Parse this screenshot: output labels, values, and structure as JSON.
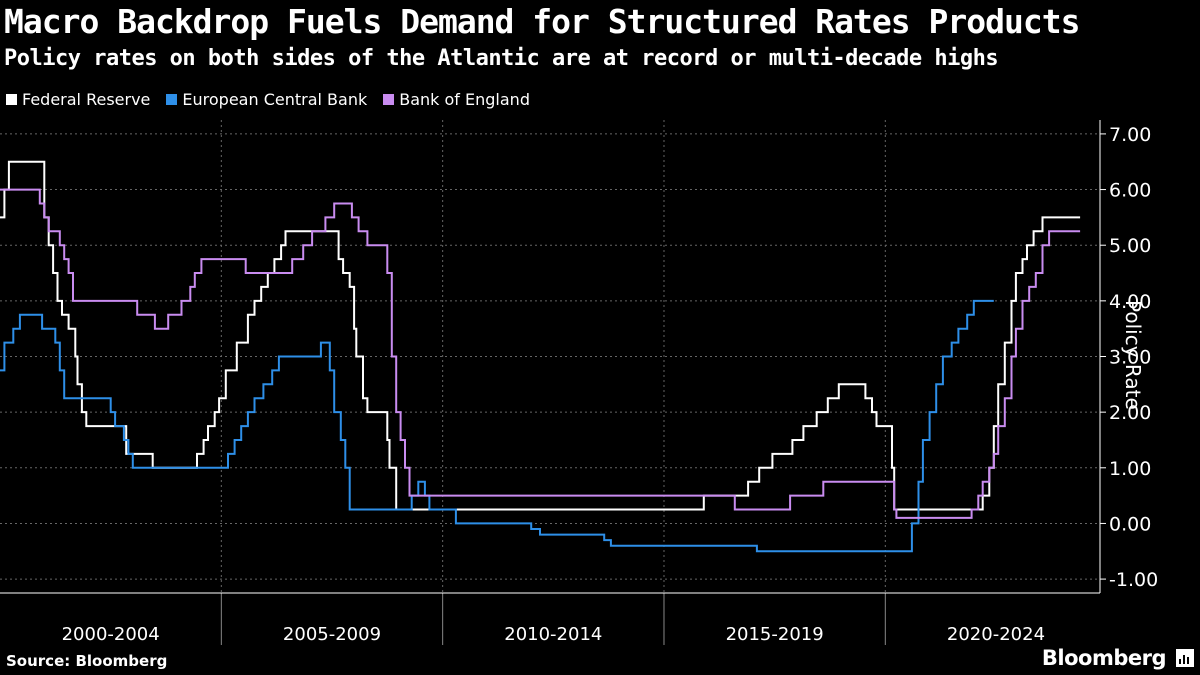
{
  "title": "Macro Backdrop Fuels Demand for Structured Rates Products",
  "subtitle": "Policy rates on both sides of the Atlantic are at record or multi-decade highs",
  "source": "Source: Bloomberg",
  "brand": "Bloomberg",
  "chart_data": {
    "type": "line",
    "ylabel": "Policy Rate",
    "ylim": [
      -1.25,
      7.25
    ],
    "yticks": [
      7,
      6,
      5,
      4,
      3,
      2,
      1,
      0,
      -1
    ],
    "ytick_labels": [
      "7.00",
      "6.00",
      "5.00",
      "4.00",
      "3.00",
      "2.00",
      "1.00",
      "0.00",
      "-1.00"
    ],
    "x_range": [
      2000.0,
      2024.7
    ],
    "x_groups": [
      {
        "label": "2000-2004",
        "start": 2000,
        "end": 2005
      },
      {
        "label": "2005-2009",
        "start": 2005,
        "end": 2010
      },
      {
        "label": "2010-2014",
        "start": 2010,
        "end": 2015
      },
      {
        "label": "2015-2019",
        "start": 2015,
        "end": 2020
      },
      {
        "label": "2020-2024",
        "start": 2020,
        "end": 2025
      }
    ],
    "grid": true,
    "legend_position": "top-left",
    "series": [
      {
        "name": "Federal Reserve",
        "color": "#ffffff",
        "points": [
          [
            2000.0,
            5.5
          ],
          [
            2000.1,
            6.0
          ],
          [
            2000.2,
            6.5
          ],
          [
            2000.65,
            6.5
          ],
          [
            2001.0,
            5.5
          ],
          [
            2001.1,
            5.0
          ],
          [
            2001.2,
            4.5
          ],
          [
            2001.3,
            4.0
          ],
          [
            2001.4,
            3.75
          ],
          [
            2001.55,
            3.5
          ],
          [
            2001.7,
            3.0
          ],
          [
            2001.75,
            2.5
          ],
          [
            2001.85,
            2.0
          ],
          [
            2001.95,
            1.75
          ],
          [
            2002.85,
            1.25
          ],
          [
            2003.45,
            1.0
          ],
          [
            2004.45,
            1.25
          ],
          [
            2004.6,
            1.5
          ],
          [
            2004.7,
            1.75
          ],
          [
            2004.85,
            2.0
          ],
          [
            2004.95,
            2.25
          ],
          [
            2005.1,
            2.75
          ],
          [
            2005.35,
            3.25
          ],
          [
            2005.6,
            3.75
          ],
          [
            2005.75,
            4.0
          ],
          [
            2005.9,
            4.25
          ],
          [
            2006.05,
            4.5
          ],
          [
            2006.2,
            4.75
          ],
          [
            2006.35,
            5.0
          ],
          [
            2006.45,
            5.25
          ],
          [
            2007.65,
            4.75
          ],
          [
            2007.75,
            4.5
          ],
          [
            2007.9,
            4.25
          ],
          [
            2008.0,
            3.5
          ],
          [
            2008.05,
            3.0
          ],
          [
            2008.2,
            2.25
          ],
          [
            2008.3,
            2.0
          ],
          [
            2008.75,
            1.5
          ],
          [
            2008.8,
            1.0
          ],
          [
            2008.95,
            0.25
          ],
          [
            2015.9,
            0.5
          ],
          [
            2016.9,
            0.75
          ],
          [
            2017.15,
            1.0
          ],
          [
            2017.45,
            1.25
          ],
          [
            2017.9,
            1.5
          ],
          [
            2018.15,
            1.75
          ],
          [
            2018.45,
            2.0
          ],
          [
            2018.7,
            2.25
          ],
          [
            2018.95,
            2.5
          ],
          [
            2019.55,
            2.25
          ],
          [
            2019.7,
            2.0
          ],
          [
            2019.8,
            1.75
          ],
          [
            2020.15,
            1.0
          ],
          [
            2020.2,
            0.25
          ],
          [
            2022.2,
            0.5
          ],
          [
            2022.35,
            1.0
          ],
          [
            2022.45,
            1.75
          ],
          [
            2022.55,
            2.5
          ],
          [
            2022.7,
            3.25
          ],
          [
            2022.85,
            4.0
          ],
          [
            2022.95,
            4.5
          ],
          [
            2023.1,
            4.75
          ],
          [
            2023.2,
            5.0
          ],
          [
            2023.35,
            5.25
          ],
          [
            2023.55,
            5.5
          ],
          [
            2024.4,
            5.5
          ]
        ]
      },
      {
        "name": "European Central Bank",
        "color": "#2e8fe8",
        "points": [
          [
            2000.0,
            2.75
          ],
          [
            2000.1,
            3.25
          ],
          [
            2000.3,
            3.5
          ],
          [
            2000.45,
            3.75
          ],
          [
            2000.95,
            3.5
          ],
          [
            2001.25,
            3.25
          ],
          [
            2001.35,
            2.75
          ],
          [
            2001.45,
            2.25
          ],
          [
            2002.5,
            2.25
          ],
          [
            2002.5,
            2.0
          ],
          [
            2002.6,
            1.75
          ],
          [
            2002.8,
            1.5
          ],
          [
            2002.9,
            1.25
          ],
          [
            2003.0,
            1.0
          ],
          [
            2005.0,
            1.0
          ],
          [
            2005.15,
            1.25
          ],
          [
            2005.3,
            1.5
          ],
          [
            2005.45,
            1.75
          ],
          [
            2005.6,
            2.0
          ],
          [
            2005.75,
            2.25
          ],
          [
            2005.95,
            2.5
          ],
          [
            2006.15,
            2.75
          ],
          [
            2006.3,
            3.0
          ],
          [
            2007.05,
            3.0
          ],
          [
            2007.25,
            3.25
          ],
          [
            2007.45,
            2.75
          ],
          [
            2007.55,
            2.0
          ],
          [
            2007.7,
            1.5
          ],
          [
            2007.8,
            1.0
          ],
          [
            2007.9,
            0.25
          ],
          [
            2009.2,
            0.25
          ],
          [
            2009.3,
            0.5
          ],
          [
            2009.45,
            0.75
          ],
          [
            2009.6,
            0.5
          ],
          [
            2009.7,
            0.25
          ],
          [
            2010.2,
            0.25
          ],
          [
            2010.3,
            0.0
          ],
          [
            2011.85,
            0.0
          ],
          [
            2012.0,
            -0.1
          ],
          [
            2012.2,
            -0.2
          ],
          [
            2013.5,
            -0.2
          ],
          [
            2013.65,
            -0.3
          ],
          [
            2013.8,
            -0.4
          ],
          [
            2016.9,
            -0.4
          ],
          [
            2017.1,
            -0.5
          ],
          [
            2020.55,
            -0.5
          ],
          [
            2020.6,
            0.0
          ],
          [
            2020.75,
            0.75
          ],
          [
            2020.85,
            1.5
          ],
          [
            2021.0,
            2.0
          ],
          [
            2021.15,
            2.5
          ],
          [
            2021.3,
            3.0
          ],
          [
            2021.5,
            3.25
          ],
          [
            2021.65,
            3.5
          ],
          [
            2021.85,
            3.75
          ],
          [
            2022.0,
            4.0
          ],
          [
            2022.45,
            4.0
          ]
        ]
      },
      {
        "name": "Bank of England",
        "color": "#c98cf0",
        "points": [
          [
            2000.0,
            6.0
          ],
          [
            2000.8,
            6.0
          ],
          [
            2000.9,
            5.75
          ],
          [
            2001.0,
            5.5
          ],
          [
            2001.1,
            5.25
          ],
          [
            2001.35,
            5.0
          ],
          [
            2001.45,
            4.75
          ],
          [
            2001.55,
            4.5
          ],
          [
            2001.65,
            4.0
          ],
          [
            2003.0,
            4.0
          ],
          [
            2003.1,
            3.75
          ],
          [
            2003.5,
            3.5
          ],
          [
            2003.8,
            3.75
          ],
          [
            2004.1,
            4.0
          ],
          [
            2004.3,
            4.25
          ],
          [
            2004.4,
            4.5
          ],
          [
            2004.55,
            4.75
          ],
          [
            2005.55,
            4.5
          ],
          [
            2006.6,
            4.75
          ],
          [
            2006.85,
            5.0
          ],
          [
            2007.05,
            5.25
          ],
          [
            2007.35,
            5.5
          ],
          [
            2007.55,
            5.75
          ],
          [
            2007.95,
            5.5
          ],
          [
            2008.1,
            5.25
          ],
          [
            2008.3,
            5.0
          ],
          [
            2008.75,
            4.5
          ],
          [
            2008.85,
            3.0
          ],
          [
            2008.95,
            2.0
          ],
          [
            2009.05,
            1.5
          ],
          [
            2009.15,
            1.0
          ],
          [
            2009.25,
            0.5
          ],
          [
            2016.6,
            0.25
          ],
          [
            2017.85,
            0.5
          ],
          [
            2018.6,
            0.75
          ],
          [
            2020.2,
            0.25
          ],
          [
            2020.25,
            0.1
          ],
          [
            2021.95,
            0.25
          ],
          [
            2022.1,
            0.5
          ],
          [
            2022.2,
            0.75
          ],
          [
            2022.35,
            1.0
          ],
          [
            2022.45,
            1.25
          ],
          [
            2022.55,
            1.75
          ],
          [
            2022.7,
            2.25
          ],
          [
            2022.85,
            3.0
          ],
          [
            2022.95,
            3.5
          ],
          [
            2023.1,
            4.0
          ],
          [
            2023.25,
            4.25
          ],
          [
            2023.4,
            4.5
          ],
          [
            2023.55,
            5.0
          ],
          [
            2023.7,
            5.25
          ],
          [
            2024.4,
            5.25
          ]
        ]
      }
    ]
  }
}
